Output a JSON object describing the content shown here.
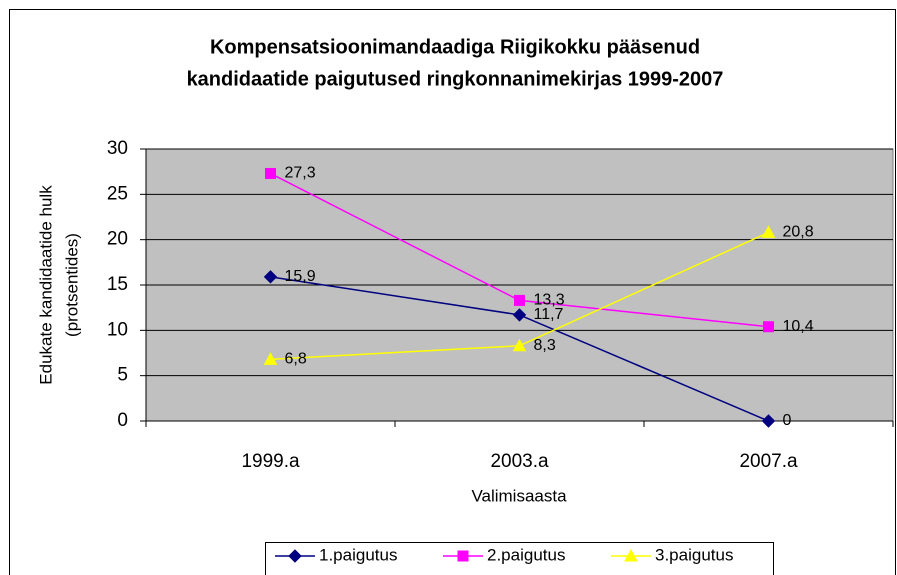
{
  "chart_data": {
    "type": "line",
    "title": [
      "Kompensatsioonimandaadiga Riigikokku pääsenud",
      "kandidaatide paigutused ringkonnanimekirjas 1999-2007"
    ],
    "y_label": [
      "Edukate kandidaatide hulk",
      "(protsentides)"
    ],
    "x_label": "Valimisaasta",
    "categories": [
      "1999.a",
      "2003.a",
      "2007.a"
    ],
    "series": [
      {
        "name": "1.paigutus",
        "color": "#000080",
        "marker": "diamond",
        "values": [
          15.9,
          11.7,
          0
        ],
        "value_labels": [
          "15,9",
          "11,7",
          "0"
        ]
      },
      {
        "name": "2.paigutus",
        "color": "#ff00ff",
        "marker": "square",
        "values": [
          27.3,
          13.3,
          10.4
        ],
        "value_labels": [
          "27,3",
          "13,3",
          "10,4"
        ]
      },
      {
        "name": "3.paigutus",
        "color": "#ffff00",
        "marker": "triangle",
        "values": [
          6.8,
          8.3,
          20.8
        ],
        "value_labels": [
          "6,8",
          "8,3",
          "20,8"
        ]
      }
    ],
    "ylim": [
      0,
      30
    ],
    "yticks": [
      0,
      5,
      10,
      15,
      20,
      25,
      30
    ],
    "grid": true,
    "legend": "bottom"
  }
}
